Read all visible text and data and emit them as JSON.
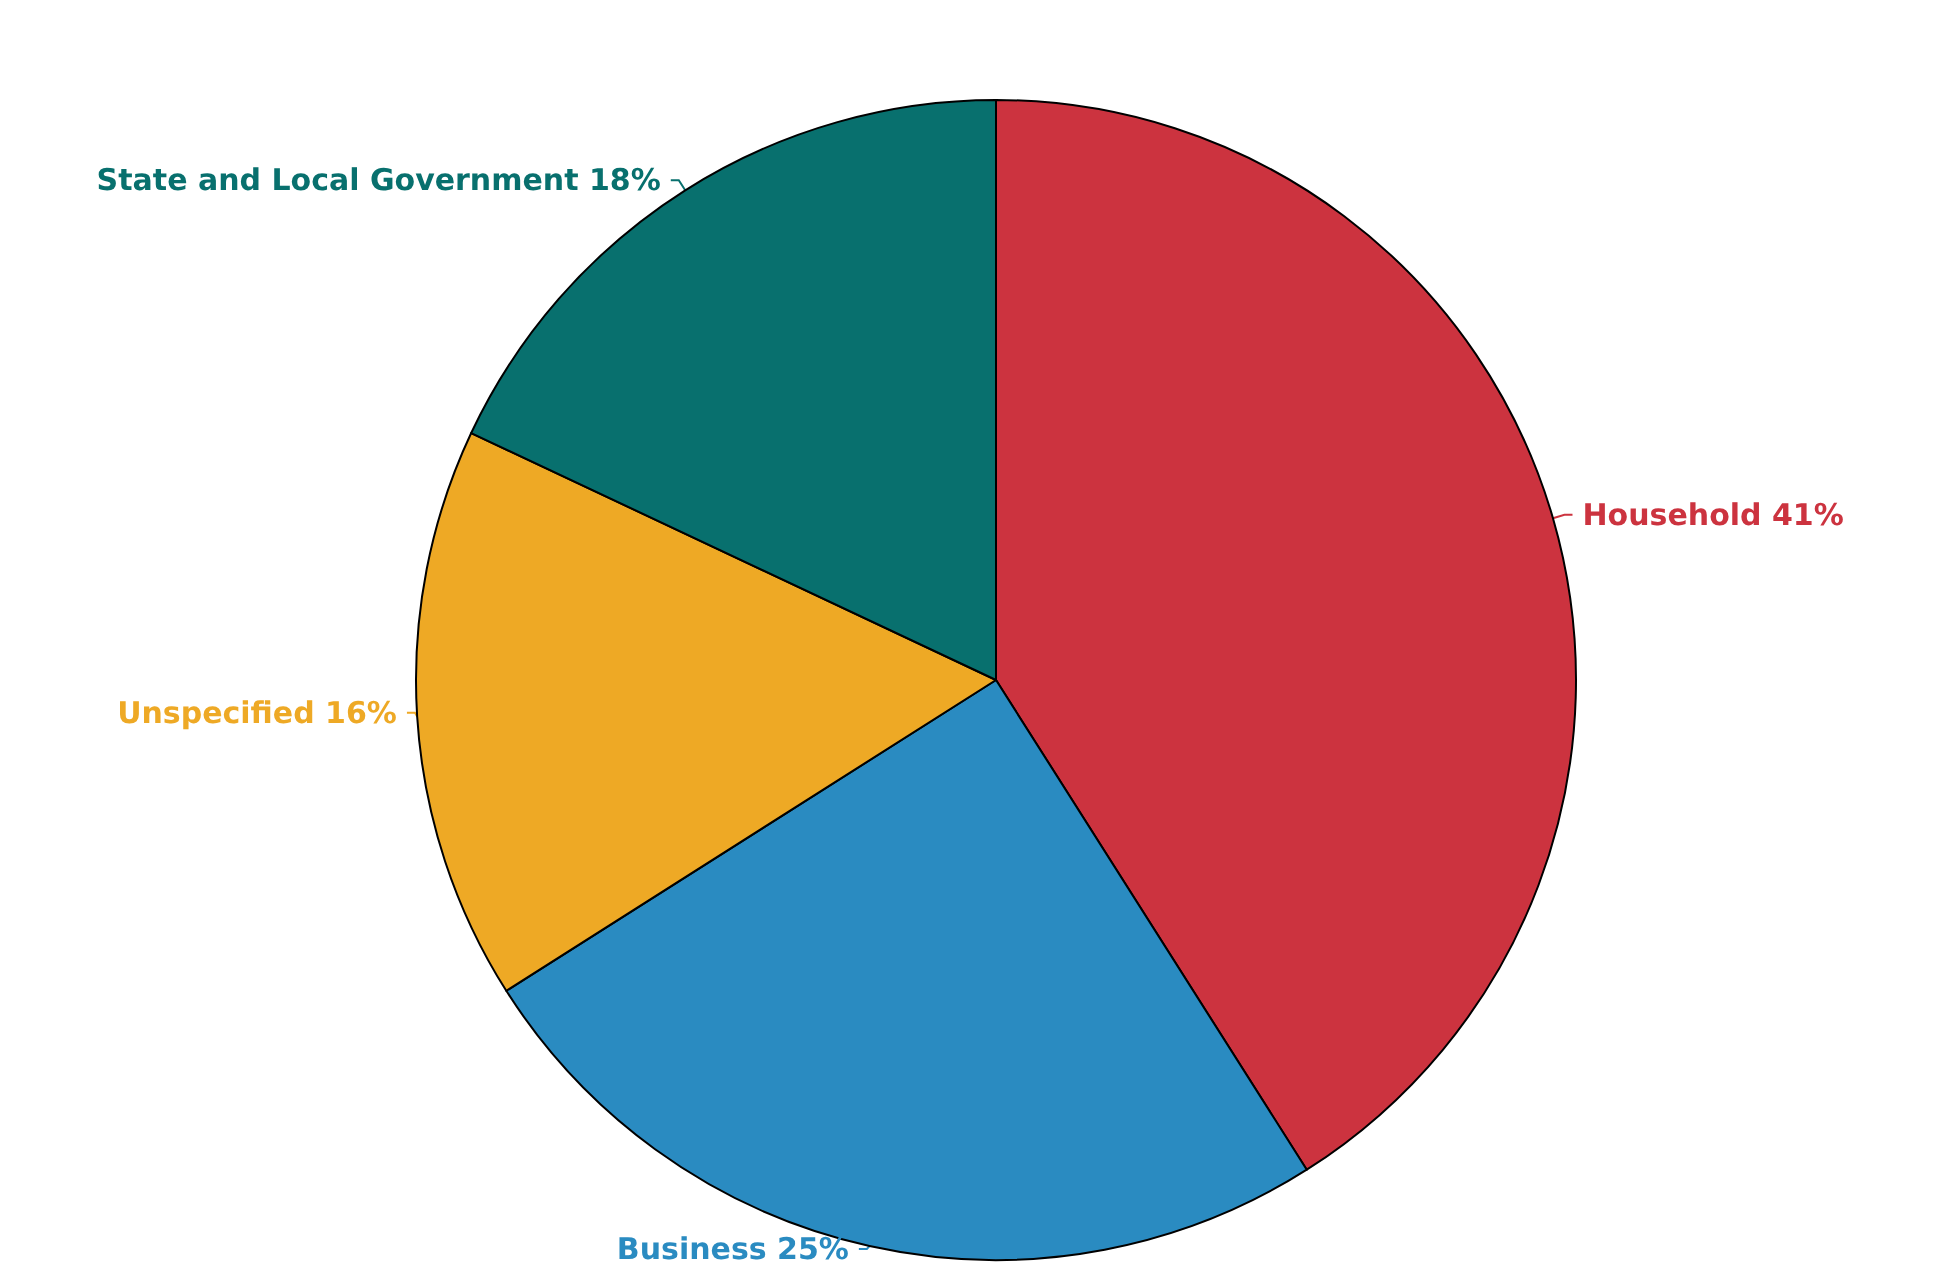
{
  "chart_data": {
    "type": "pie",
    "categories": [
      "Household",
      "Business",
      "Unspecified",
      "State and Local Government"
    ],
    "values": [
      41,
      25,
      16,
      18
    ],
    "value_labels": [
      "41%",
      "25%",
      "16%",
      "18%"
    ],
    "colors": [
      "#cc333f",
      "#2a8bc1",
      "#eea925",
      "#08706e"
    ],
    "legend": false
  }
}
